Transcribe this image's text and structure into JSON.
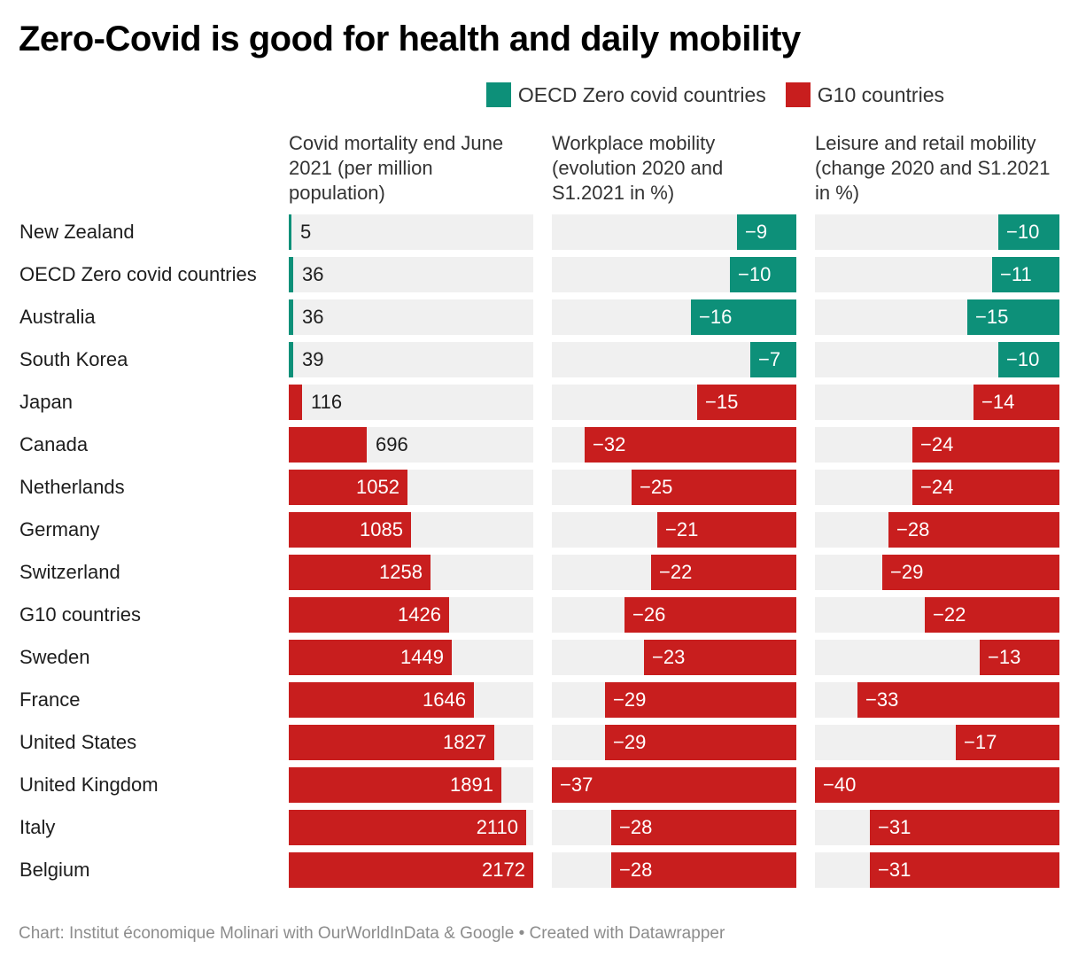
{
  "title": "Zero-Covid is good for health and daily mobility",
  "legend": [
    {
      "label": "OECD Zero covid countries",
      "color": "#0d9079"
    },
    {
      "label": "G10 countries",
      "color": "#c81e1e"
    }
  ],
  "source": "Chart: Institut économique Molinari with OurWorldInData & Google • Created with Datawrapper",
  "chart_data": {
    "type": "bar",
    "groups": [
      "OECD Zero covid countries",
      "G10 countries"
    ],
    "colors": {
      "OECD Zero covid countries": "#0d9079",
      "G10 countries": "#c81e1e"
    },
    "categories": [
      "New Zealand",
      "OECD Zero covid countries",
      "Australia",
      "South Korea",
      "Japan",
      "Canada",
      "Netherlands",
      "Germany",
      "Switzerland",
      "G10 countries",
      "Sweden",
      "France",
      "United States",
      "United Kingdom",
      "Italy",
      "Belgium"
    ],
    "category_group": [
      "OECD Zero covid countries",
      "OECD Zero covid countries",
      "OECD Zero covid countries",
      "OECD Zero covid countries",
      "G10 countries",
      "G10 countries",
      "G10 countries",
      "G10 countries",
      "G10 countries",
      "G10 countries",
      "G10 countries",
      "G10 countries",
      "G10 countries",
      "G10 countries",
      "G10 countries",
      "G10 countries"
    ],
    "series": [
      {
        "name": "Covid mortality end June 2021 (per million population)",
        "values": [
          5,
          36,
          36,
          39,
          116,
          696,
          1052,
          1085,
          1258,
          1426,
          1449,
          1646,
          1827,
          1891,
          2110,
          2172
        ],
        "range": [
          0,
          2172
        ]
      },
      {
        "name": "Workplace mobility (evolution 2020 and S1.2021 in %)",
        "values": [
          -9,
          -10,
          -16,
          -7,
          -15,
          -32,
          -25,
          -21,
          -22,
          -26,
          -23,
          -29,
          -29,
          -37,
          -28,
          -28
        ],
        "range": [
          -37,
          0
        ]
      },
      {
        "name": "Leisure and retail mobility (change 2020 and S1.2021 in %)",
        "values": [
          -10,
          -11,
          -15,
          -10,
          -14,
          -24,
          -24,
          -28,
          -29,
          -22,
          -13,
          -33,
          -17,
          -40,
          -31,
          -31
        ],
        "range": [
          -40,
          0
        ]
      }
    ]
  }
}
